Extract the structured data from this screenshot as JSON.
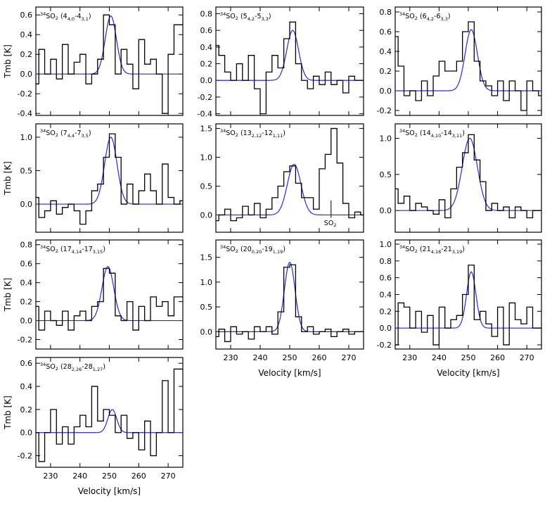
{
  "figure": {
    "fit_color": "#2a2ad4",
    "step_color": "#000000",
    "axis_color": "#000000"
  },
  "chart_data": [
    {
      "type": "line",
      "panel_label": {
        "mol": "SO",
        "main": "2",
        "iso": "34",
        "trans": [
          [
            "4",
            "4,0"
          ],
          [
            "4",
            "3,1"
          ]
        ]
      },
      "xlim": [
        225,
        275
      ],
      "ylim": [
        -0.42,
        0.68
      ],
      "xticks": [],
      "yticks": [
        -0.4,
        -0.2,
        0.0,
        0.2,
        0.4,
        0.6
      ],
      "xlabel": "",
      "ylabel": "Tmb [K]",
      "fit": {
        "amp": 0.59,
        "center": 250.5,
        "sigma": 1.9
      },
      "series": [
        {
          "name": "observed",
          "x": [
            225,
            227,
            229,
            231,
            233,
            235,
            237,
            239,
            241,
            243,
            245,
            247,
            249,
            251,
            253,
            255,
            257,
            259,
            261,
            263,
            265,
            267,
            269,
            271,
            273,
            275
          ],
          "y": [
            -0.1,
            0.25,
            0.0,
            0.15,
            -0.05,
            0.3,
            0.0,
            0.12,
            0.2,
            -0.1,
            0.0,
            0.15,
            0.6,
            0.5,
            0.0,
            0.25,
            0.1,
            -0.15,
            0.35,
            0.1,
            0.15,
            0.0,
            -0.4,
            0.2,
            0.5,
            0.5
          ]
        }
      ]
    },
    {
      "type": "line",
      "panel_label": {
        "mol": "SO",
        "main": "2",
        "iso": "34",
        "trans": [
          [
            "5",
            "4,2"
          ],
          [
            "5",
            "3,3"
          ]
        ]
      },
      "xlim": [
        225,
        275
      ],
      "ylim": [
        -0.42,
        0.88
      ],
      "xticks": [],
      "yticks": [
        -0.4,
        -0.2,
        0.0,
        0.2,
        0.4,
        0.6,
        0.8
      ],
      "xlabel": "",
      "ylabel": "",
      "fit": {
        "amp": 0.6,
        "center": 251,
        "sigma": 2.0
      },
      "series": [
        {
          "name": "observed",
          "x": [
            225,
            227,
            229,
            231,
            233,
            235,
            237,
            239,
            241,
            243,
            245,
            247,
            249,
            251,
            253,
            255,
            257,
            259,
            261,
            263,
            265,
            267,
            269,
            271,
            273,
            275
          ],
          "y": [
            0.42,
            0.3,
            0.1,
            0.0,
            0.2,
            0.0,
            0.3,
            -0.1,
            -0.4,
            0.1,
            0.3,
            0.15,
            0.5,
            0.7,
            0.2,
            0.0,
            -0.1,
            0.05,
            -0.05,
            0.1,
            -0.05,
            0.0,
            -0.15,
            0.05,
            0.0,
            0.0
          ]
        }
      ]
    },
    {
      "type": "line",
      "panel_label": {
        "mol": "SO",
        "main": "2",
        "iso": "34",
        "trans": [
          [
            "6",
            "4,2"
          ],
          [
            "6",
            "3,3"
          ]
        ]
      },
      "xlim": [
        225,
        275
      ],
      "ylim": [
        -0.25,
        0.85
      ],
      "xticks": [],
      "yticks": [
        -0.2,
        0.0,
        0.2,
        0.4,
        0.6,
        0.8
      ],
      "xlabel": "",
      "ylabel": "",
      "fit": {
        "amp": 0.62,
        "center": 251,
        "sigma": 2.1
      },
      "series": [
        {
          "name": "observed",
          "x": [
            225,
            227,
            229,
            231,
            233,
            235,
            237,
            239,
            241,
            243,
            245,
            247,
            249,
            251,
            253,
            255,
            257,
            259,
            261,
            263,
            265,
            267,
            269,
            271,
            273,
            275
          ],
          "y": [
            0.55,
            0.25,
            -0.05,
            0.0,
            -0.1,
            0.1,
            -0.05,
            0.15,
            0.3,
            0.2,
            0.2,
            0.3,
            0.6,
            0.7,
            0.3,
            0.1,
            0.05,
            -0.05,
            0.1,
            -0.1,
            0.1,
            0.0,
            -0.2,
            0.1,
            0.0,
            -0.05
          ]
        }
      ]
    },
    {
      "type": "line",
      "panel_label": {
        "mol": "SO",
        "main": "2",
        "iso": "34",
        "trans": [
          [
            "7",
            "4,4"
          ],
          [
            "7",
            "3,5"
          ]
        ]
      },
      "xlim": [
        225,
        275
      ],
      "ylim": [
        -0.42,
        1.2
      ],
      "xticks": [],
      "yticks": [
        0.0,
        0.5,
        1.0
      ],
      "xlabel": "",
      "ylabel": "Tmb [K]",
      "fit": {
        "amp": 1.0,
        "center": 250.5,
        "sigma": 2.1
      },
      "series": [
        {
          "name": "observed",
          "x": [
            225,
            227,
            229,
            231,
            233,
            235,
            237,
            239,
            241,
            243,
            245,
            247,
            249,
            251,
            253,
            255,
            257,
            259,
            261,
            263,
            265,
            267,
            269,
            271,
            273,
            275
          ],
          "y": [
            0.1,
            -0.2,
            -0.1,
            0.05,
            -0.15,
            -0.05,
            0.0,
            -0.1,
            -0.3,
            -0.1,
            0.2,
            0.3,
            0.7,
            1.05,
            0.7,
            0.0,
            0.3,
            0.0,
            0.2,
            0.45,
            0.2,
            0.0,
            0.6,
            0.1,
            0.0,
            0.05
          ]
        }
      ]
    },
    {
      "type": "line",
      "panel_label": {
        "mol": "SO",
        "main": "2",
        "iso": "34",
        "trans": [
          [
            "13",
            "2,12"
          ],
          [
            "12",
            "1,11"
          ]
        ]
      },
      "annotation": {
        "mol": "SO",
        "main": "2"
      },
      "xlim": [
        225,
        275
      ],
      "ylim": [
        -0.3,
        1.58
      ],
      "xticks": [],
      "yticks": [
        0.0,
        0.5,
        1.0,
        1.5
      ],
      "xlabel": "",
      "ylabel": "",
      "fit": {
        "amp": 0.88,
        "center": 251.5,
        "sigma": 2.3
      },
      "series": [
        {
          "name": "observed",
          "x": [
            225,
            227,
            229,
            231,
            233,
            235,
            237,
            239,
            241,
            243,
            245,
            247,
            249,
            251,
            253,
            255,
            257,
            259,
            261,
            263,
            265,
            267,
            269,
            271,
            273,
            275
          ],
          "y": [
            -0.1,
            0.0,
            0.1,
            -0.1,
            -0.05,
            0.15,
            0.0,
            0.2,
            -0.05,
            0.1,
            0.3,
            0.5,
            0.75,
            0.85,
            0.55,
            0.3,
            0.3,
            0.1,
            0.8,
            1.05,
            1.5,
            0.9,
            0.2,
            -0.05,
            0.05,
            0.0
          ]
        }
      ]
    },
    {
      "type": "line",
      "panel_label": {
        "mol": "SO",
        "main": "2",
        "iso": "34",
        "trans": [
          [
            "14",
            "4,10"
          ],
          [
            "14",
            "3,11"
          ]
        ]
      },
      "xlim": [
        225,
        275
      ],
      "ylim": [
        -0.3,
        1.2
      ],
      "xticks": [],
      "yticks": [
        0.0,
        0.5,
        1.0
      ],
      "xlabel": "",
      "ylabel": "",
      "fit": {
        "amp": 1.0,
        "center": 250.5,
        "sigma": 2.6
      },
      "series": [
        {
          "name": "observed",
          "x": [
            225,
            227,
            229,
            231,
            233,
            235,
            237,
            239,
            241,
            243,
            245,
            247,
            249,
            251,
            253,
            255,
            257,
            259,
            261,
            263,
            265,
            267,
            269,
            271,
            273,
            275
          ],
          "y": [
            0.3,
            0.1,
            0.2,
            0.0,
            0.1,
            0.05,
            0.0,
            -0.05,
            0.15,
            -0.1,
            0.3,
            0.6,
            0.8,
            1.05,
            0.7,
            0.4,
            0.0,
            0.1,
            0.0,
            0.05,
            -0.1,
            0.05,
            0.0,
            -0.1,
            0.0,
            0.0
          ]
        }
      ]
    },
    {
      "type": "line",
      "panel_label": {
        "mol": "SO",
        "main": "2",
        "iso": "34",
        "trans": [
          [
            "17",
            "4,14"
          ],
          [
            "17",
            "3,15"
          ]
        ]
      },
      "xlim": [
        225,
        275
      ],
      "ylim": [
        -0.3,
        0.85
      ],
      "xticks": [],
      "yticks": [
        -0.2,
        0.0,
        0.2,
        0.4,
        0.6,
        0.8
      ],
      "xlabel": "",
      "ylabel": "Tmb [K]",
      "fit": {
        "amp": 0.57,
        "center": 249.5,
        "sigma": 2.0
      },
      "series": [
        {
          "name": "observed",
          "x": [
            225,
            227,
            229,
            231,
            233,
            235,
            237,
            239,
            241,
            243,
            245,
            247,
            249,
            251,
            253,
            255,
            257,
            259,
            261,
            263,
            265,
            267,
            269,
            271,
            273,
            275
          ],
          "y": [
            0.15,
            -0.1,
            0.1,
            0.0,
            -0.05,
            0.1,
            -0.1,
            0.05,
            0.1,
            0.0,
            0.15,
            0.2,
            0.55,
            0.5,
            0.05,
            0.0,
            0.2,
            -0.1,
            0.15,
            0.0,
            0.25,
            0.15,
            0.2,
            0.05,
            0.25,
            0.25
          ]
        }
      ]
    },
    {
      "type": "line",
      "panel_label": {
        "mol": "SO",
        "main": "2",
        "iso": "34",
        "trans": [
          [
            "20",
            "0,20"
          ],
          [
            "19",
            "1,19"
          ]
        ]
      },
      "xlim": [
        225,
        275
      ],
      "ylim": [
        -0.35,
        1.85
      ],
      "xticks": [
        230,
        240,
        250,
        260,
        270
      ],
      "yticks": [
        0.0,
        0.5,
        1.0,
        1.5
      ],
      "xlabel": "Velocity [km/s]",
      "ylabel": "",
      "fit": {
        "amp": 1.4,
        "center": 250,
        "sigma": 1.8
      },
      "series": [
        {
          "name": "observed",
          "x": [
            225,
            227,
            229,
            231,
            233,
            235,
            237,
            239,
            241,
            243,
            245,
            247,
            249,
            251,
            253,
            255,
            257,
            259,
            261,
            263,
            265,
            267,
            269,
            271,
            273,
            275
          ],
          "y": [
            -0.1,
            0.05,
            -0.2,
            0.1,
            -0.05,
            0.0,
            -0.15,
            0.1,
            0.0,
            0.1,
            -0.05,
            0.4,
            1.3,
            1.35,
            0.3,
            0.0,
            0.1,
            -0.05,
            0.0,
            0.05,
            -0.1,
            0.0,
            0.05,
            -0.05,
            0.0,
            0.0
          ]
        }
      ]
    },
    {
      "type": "line",
      "panel_label": {
        "mol": "SO",
        "main": "2",
        "iso": "34",
        "trans": [
          [
            "21",
            "4,18"
          ],
          [
            "21",
            "3,19"
          ]
        ]
      },
      "xlim": [
        225,
        275
      ],
      "ylim": [
        -0.25,
        1.05
      ],
      "xticks": [
        230,
        240,
        250,
        260,
        270
      ],
      "yticks": [
        -0.2,
        0.0,
        0.2,
        0.4,
        0.6,
        0.8,
        1.0
      ],
      "xlabel": "Velocity [km/s]",
      "ylabel": "",
      "fit": {
        "amp": 0.67,
        "center": 251,
        "sigma": 1.6
      },
      "series": [
        {
          "name": "observed",
          "x": [
            225,
            227,
            229,
            231,
            233,
            235,
            237,
            239,
            241,
            243,
            245,
            247,
            249,
            251,
            253,
            255,
            257,
            259,
            261,
            263,
            265,
            267,
            269,
            271,
            273,
            275
          ],
          "y": [
            -0.2,
            0.3,
            0.25,
            0.0,
            0.2,
            -0.05,
            0.15,
            -0.2,
            0.25,
            0.0,
            0.1,
            0.15,
            0.4,
            0.75,
            0.1,
            0.2,
            0.05,
            -0.1,
            0.25,
            -0.2,
            0.3,
            0.1,
            0.05,
            0.25,
            0.0,
            0.0
          ]
        }
      ]
    },
    {
      "type": "line",
      "panel_label": {
        "mol": "SO",
        "main": "2",
        "iso": "34",
        "trans": [
          [
            "28",
            "2,26"
          ],
          [
            "28",
            "1,27"
          ]
        ]
      },
      "xlim": [
        225,
        275
      ],
      "ylim": [
        -0.3,
        0.65
      ],
      "xticks": [
        230,
        240,
        250,
        260,
        270
      ],
      "yticks": [
        -0.2,
        0.0,
        0.2,
        0.4,
        0.6
      ],
      "xlabel": "Velocity [km/s]",
      "ylabel": "Tmb [K]",
      "fit": {
        "amp": 0.2,
        "center": 251,
        "sigma": 1.5
      },
      "series": [
        {
          "name": "observed",
          "x": [
            225,
            227,
            229,
            231,
            233,
            235,
            237,
            239,
            241,
            243,
            245,
            247,
            249,
            251,
            253,
            255,
            257,
            259,
            261,
            263,
            265,
            267,
            269,
            271,
            273,
            275
          ],
          "y": [
            0.0,
            -0.25,
            0.0,
            0.2,
            -0.1,
            0.05,
            -0.1,
            0.05,
            0.15,
            0.05,
            0.4,
            0.1,
            0.2,
            0.15,
            0.0,
            0.15,
            -0.05,
            0.0,
            -0.15,
            0.1,
            -0.2,
            0.0,
            0.45,
            0.0,
            0.55,
            0.55
          ]
        }
      ]
    }
  ]
}
